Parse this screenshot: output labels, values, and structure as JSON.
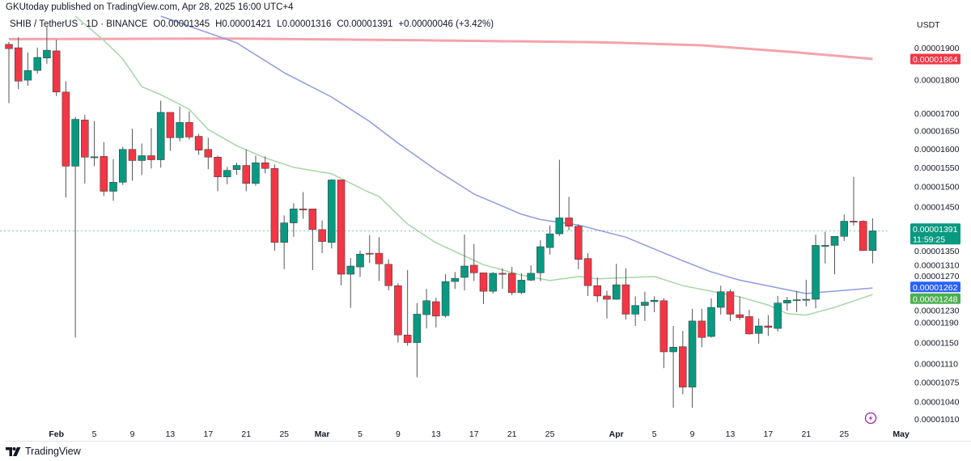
{
  "header": {
    "published": "GKUtoday published on TradingView.com, Apr 28, 2025 16:00 UTC+4",
    "symbol": "SHIB / TetherUS · 1D · BINANCE",
    "open": "O0.00001345",
    "high": "H0.00001421",
    "low": "L0.00001316",
    "close": "C0.00001391",
    "change": "+0.00000046 (+3.42%)"
  },
  "footer": {
    "brand": "TradingView"
  },
  "icons": {
    "logo": "tradingview-logo-icon",
    "lightning": "lightning-icon"
  },
  "colors": {
    "up": "#089981",
    "down": "#f23645",
    "ma_red": "#f4a3ab",
    "ma_blue": "#8f9be0",
    "ma_green": "#a8d5a9",
    "badge_red": "#f23645",
    "badge_blue": "#2962ff",
    "badge_green": "#4caf50",
    "lightning": "#9c27b0"
  },
  "chart_data": {
    "type": "candlestick",
    "title": "",
    "xlabel": "",
    "ylabel": "",
    "y_unit": "USDT",
    "y_scale": "log",
    "ylim": [
      9.85e-06,
      2.061e-05
    ],
    "grid": false,
    "x_ticks": [
      {
        "date": "2025-02-01",
        "label": "Feb",
        "bold": true
      },
      {
        "date": "2025-02-05",
        "label": "5"
      },
      {
        "date": "2025-02-09",
        "label": "9"
      },
      {
        "date": "2025-02-13",
        "label": "13"
      },
      {
        "date": "2025-02-17",
        "label": "17"
      },
      {
        "date": "2025-02-21",
        "label": "21"
      },
      {
        "date": "2025-02-25",
        "label": "25"
      },
      {
        "date": "2025-03-01",
        "label": "Mar",
        "bold": true
      },
      {
        "date": "2025-03-05",
        "label": "5"
      },
      {
        "date": "2025-03-09",
        "label": "9"
      },
      {
        "date": "2025-03-13",
        "label": "13"
      },
      {
        "date": "2025-03-17",
        "label": "17"
      },
      {
        "date": "2025-03-21",
        "label": "21"
      },
      {
        "date": "2025-03-25",
        "label": "25"
      },
      {
        "date": "2025-04-01",
        "label": "Apr",
        "bold": true
      },
      {
        "date": "2025-04-05",
        "label": "5"
      },
      {
        "date": "2025-04-09",
        "label": "9"
      },
      {
        "date": "2025-04-13",
        "label": "13"
      },
      {
        "date": "2025-04-17",
        "label": "17"
      },
      {
        "date": "2025-04-21",
        "label": "21"
      },
      {
        "date": "2025-04-25",
        "label": "25"
      },
      {
        "date": "2025-05-01",
        "label": "May",
        "bold": true
      }
    ],
    "y_ticks": [
      "0.00001900",
      "0.00001800",
      "0.00001700",
      "0.00001650",
      "0.00001600",
      "0.00001550",
      "0.00001500",
      "0.00001450",
      "0.00001350",
      "0.00001310",
      "0.00001270",
      "0.00001230",
      "0.00001190",
      "0.00001150",
      "0.00001110",
      "0.00001075",
      "0.00001040",
      "0.00001010"
    ],
    "candle_fields": [
      "date",
      "open",
      "high",
      "low",
      "close"
    ],
    "candles": [
      [
        "2025-01-27",
        1.911e-05,
        1.919e-05,
        1.729e-05,
        1.897e-05
      ],
      [
        "2025-01-28",
        1.9e-05,
        1.934e-05,
        1.771e-05,
        1.795e-05
      ],
      [
        "2025-01-29",
        1.798e-05,
        1.885e-05,
        1.781e-05,
        1.828e-05
      ],
      [
        "2025-01-30",
        1.828e-05,
        1.9e-05,
        1.818e-05,
        1.869e-05
      ],
      [
        "2025-01-31",
        1.867e-05,
        1.969e-05,
        1.849e-05,
        1.892e-05
      ],
      [
        "2025-02-01",
        1.89e-05,
        1.926e-05,
        1.75e-05,
        1.762e-05
      ],
      [
        "2025-02-02",
        1.762e-05,
        1.795e-05,
        1.472e-05,
        1.553e-05
      ],
      [
        "2025-02-03",
        1.553e-05,
        1.689e-05,
        1.16e-05,
        1.682e-05
      ],
      [
        "2025-02-04",
        1.68e-05,
        1.695e-05,
        1.508e-05,
        1.577e-05
      ],
      [
        "2025-02-05",
        1.577e-05,
        1.677e-05,
        1.553e-05,
        1.578e-05
      ],
      [
        "2025-02-06",
        1.579e-05,
        1.618e-05,
        1.476e-05,
        1.488e-05
      ],
      [
        "2025-02-07",
        1.488e-05,
        1.572e-05,
        1.464e-05,
        1.511e-05
      ],
      [
        "2025-02-08",
        1.511e-05,
        1.605e-05,
        1.504e-05,
        1.598e-05
      ],
      [
        "2025-02-09",
        1.598e-05,
        1.655e-05,
        1.515e-05,
        1.568e-05
      ],
      [
        "2025-02-10",
        1.568e-05,
        1.614e-05,
        1.53e-05,
        1.581e-05
      ],
      [
        "2025-02-11",
        1.581e-05,
        1.657e-05,
        1.547e-05,
        1.57e-05
      ],
      [
        "2025-02-12",
        1.57e-05,
        1.736e-05,
        1.549e-05,
        1.702e-05
      ],
      [
        "2025-02-13",
        1.702e-05,
        1.702e-05,
        1.594e-05,
        1.63e-05
      ],
      [
        "2025-02-14",
        1.63e-05,
        1.719e-05,
        1.62e-05,
        1.673e-05
      ],
      [
        "2025-02-15",
        1.673e-05,
        1.705e-05,
        1.625e-05,
        1.632e-05
      ],
      [
        "2025-02-16",
        1.634e-05,
        1.641e-05,
        1.583e-05,
        1.596e-05
      ],
      [
        "2025-02-17",
        1.598e-05,
        1.63e-05,
        1.545e-05,
        1.577e-05
      ],
      [
        "2025-02-18",
        1.577e-05,
        1.581e-05,
        1.488e-05,
        1.525e-05
      ],
      [
        "2025-02-19",
        1.525e-05,
        1.551e-05,
        1.506e-05,
        1.542e-05
      ],
      [
        "2025-02-20",
        1.544e-05,
        1.562e-05,
        1.53e-05,
        1.555e-05
      ],
      [
        "2025-02-21",
        1.555e-05,
        1.598e-05,
        1.488e-05,
        1.508e-05
      ],
      [
        "2025-02-22",
        1.508e-05,
        1.581e-05,
        1.502e-05,
        1.562e-05
      ],
      [
        "2025-02-23",
        1.562e-05,
        1.579e-05,
        1.534e-05,
        1.547e-05
      ],
      [
        "2025-02-24",
        1.547e-05,
        1.557e-05,
        1.345e-05,
        1.364e-05
      ],
      [
        "2025-02-25",
        1.364e-05,
        1.428e-05,
        1.303e-05,
        1.41e-05
      ],
      [
        "2025-02-26",
        1.41e-05,
        1.458e-05,
        1.377e-05,
        1.444e-05
      ],
      [
        "2025-02-27",
        1.444e-05,
        1.486e-05,
        1.42e-05,
        1.443e-05
      ],
      [
        "2025-02-28",
        1.444e-05,
        1.444e-05,
        1.301e-05,
        1.394e-05
      ],
      [
        "2025-03-01",
        1.394e-05,
        1.416e-05,
        1.339e-05,
        1.366e-05
      ],
      [
        "2025-03-02",
        1.364e-05,
        1.519e-05,
        1.35e-05,
        1.517e-05
      ],
      [
        "2025-03-03",
        1.517e-05,
        1.517e-05,
        1.268e-05,
        1.292e-05
      ],
      [
        "2025-03-04",
        1.292e-05,
        1.328e-05,
        1.22e-05,
        1.31e-05
      ],
      [
        "2025-03-05",
        1.308e-05,
        1.345e-05,
        1.286e-05,
        1.337e-05
      ],
      [
        "2025-03-06",
        1.339e-05,
        1.381e-05,
        1.317e-05,
        1.338e-05
      ],
      [
        "2025-03-07",
        1.339e-05,
        1.376e-05,
        1.277e-05,
        1.315e-05
      ],
      [
        "2025-03-08",
        1.314e-05,
        1.325e-05,
        1.257e-05,
        1.267e-05
      ],
      [
        "2025-03-09",
        1.267e-05,
        1.272e-05,
        1.15e-05,
        1.165e-05
      ],
      [
        "2025-03-10",
        1.165e-05,
        1.301e-05,
        1.144e-05,
        1.15e-05
      ],
      [
        "2025-03-11",
        1.15e-05,
        1.23e-05,
        1.084e-05,
        1.207e-05
      ],
      [
        "2025-03-12",
        1.206e-05,
        1.26e-05,
        1.178e-05,
        1.235e-05
      ],
      [
        "2025-03-13",
        1.233e-05,
        1.241e-05,
        1.18e-05,
        1.203e-05
      ],
      [
        "2025-03-14",
        1.204e-05,
        1.292e-05,
        1.2e-05,
        1.276e-05
      ],
      [
        "2025-03-15",
        1.276e-05,
        1.297e-05,
        1.26e-05,
        1.283e-05
      ],
      [
        "2025-03-16",
        1.285e-05,
        1.382e-05,
        1.257e-05,
        1.31e-05
      ],
      [
        "2025-03-17",
        1.312e-05,
        1.36e-05,
        1.277e-05,
        1.295e-05
      ],
      [
        "2025-03-18",
        1.295e-05,
        1.295e-05,
        1.228e-05,
        1.255e-05
      ],
      [
        "2025-03-19",
        1.255e-05,
        1.297e-05,
        1.25e-05,
        1.294e-05
      ],
      [
        "2025-03-20",
        1.294e-05,
        1.305e-05,
        1.26e-05,
        1.293e-05
      ],
      [
        "2025-03-21",
        1.294e-05,
        1.308e-05,
        1.247e-05,
        1.252e-05
      ],
      [
        "2025-03-22",
        1.252e-05,
        1.294e-05,
        1.249e-05,
        1.279e-05
      ],
      [
        "2025-03-23",
        1.279e-05,
        1.312e-05,
        1.277e-05,
        1.294e-05
      ],
      [
        "2025-03-24",
        1.295e-05,
        1.369e-05,
        1.277e-05,
        1.354e-05
      ],
      [
        "2025-03-25",
        1.352e-05,
        1.404e-05,
        1.336e-05,
        1.384e-05
      ],
      [
        "2025-03-26",
        1.384e-05,
        1.57e-05,
        1.379e-05,
        1.422e-05
      ],
      [
        "2025-03-27",
        1.422e-05,
        1.474e-05,
        1.392e-05,
        1.402e-05
      ],
      [
        "2025-03-28",
        1.402e-05,
        1.406e-05,
        1.303e-05,
        1.325e-05
      ],
      [
        "2025-03-29",
        1.327e-05,
        1.339e-05,
        1.245e-05,
        1.267e-05
      ],
      [
        "2025-03-30",
        1.267e-05,
        1.285e-05,
        1.232e-05,
        1.245e-05
      ],
      [
        "2025-03-31",
        1.245e-05,
        1.256e-05,
        1.198e-05,
        1.238e-05
      ],
      [
        "2025-04-01",
        1.238e-05,
        1.315e-05,
        1.237e-05,
        1.269e-05
      ],
      [
        "2025-04-02",
        1.269e-05,
        1.305e-05,
        1.196e-05,
        1.207e-05
      ],
      [
        "2025-04-03",
        1.207e-05,
        1.244e-05,
        1.183e-05,
        1.225e-05
      ],
      [
        "2025-04-04",
        1.225e-05,
        1.254e-05,
        1.193e-05,
        1.232e-05
      ],
      [
        "2025-04-05",
        1.233e-05,
        1.244e-05,
        1.211e-05,
        1.236e-05
      ],
      [
        "2025-04-06",
        1.235e-05,
        1.24e-05,
        1.101e-05,
        1.132e-05
      ],
      [
        "2025-04-07",
        1.132e-05,
        1.183e-05,
        1.029e-05,
        1.141e-05
      ],
      [
        "2025-04-08",
        1.142e-05,
        1.173e-05,
        1.053e-05,
        1.066e-05
      ],
      [
        "2025-04-09",
        1.066e-05,
        1.218e-05,
        1.029e-05,
        1.193e-05
      ],
      [
        "2025-04-10",
        1.193e-05,
        1.218e-05,
        1.141e-05,
        1.16e-05
      ],
      [
        "2025-04-11",
        1.162e-05,
        1.24e-05,
        1.16e-05,
        1.221e-05
      ],
      [
        "2025-04-12",
        1.221e-05,
        1.267e-05,
        1.206e-05,
        1.254e-05
      ],
      [
        "2025-04-13",
        1.254e-05,
        1.259e-05,
        1.193e-05,
        1.207e-05
      ],
      [
        "2025-04-14",
        1.206e-05,
        1.244e-05,
        1.195e-05,
        1.2e-05
      ],
      [
        "2025-04-15",
        1.202e-05,
        1.216e-05,
        1.166e-05,
        1.167e-05
      ],
      [
        "2025-04-16",
        1.168e-05,
        1.198e-05,
        1.148e-05,
        1.183e-05
      ],
      [
        "2025-04-17",
        1.183e-05,
        1.205e-05,
        1.163e-05,
        1.18e-05
      ],
      [
        "2025-04-18",
        1.178e-05,
        1.245e-05,
        1.172e-05,
        1.23e-05
      ],
      [
        "2025-04-19",
        1.23e-05,
        1.243e-05,
        1.214e-05,
        1.236e-05
      ],
      [
        "2025-04-20",
        1.236e-05,
        1.256e-05,
        1.211e-05,
        1.237e-05
      ],
      [
        "2025-04-21",
        1.237e-05,
        1.28e-05,
        1.223e-05,
        1.238e-05
      ],
      [
        "2025-04-22",
        1.238e-05,
        1.382e-05,
        1.219e-05,
        1.357e-05
      ],
      [
        "2025-04-23",
        1.357e-05,
        1.389e-05,
        1.316e-05,
        1.357e-05
      ],
      [
        "2025-04-24",
        1.357e-05,
        1.378e-05,
        1.292e-05,
        1.378e-05
      ],
      [
        "2025-04-25",
        1.378e-05,
        1.43e-05,
        1.367e-05,
        1.414e-05
      ],
      [
        "2025-04-26",
        1.414e-05,
        1.525e-05,
        1.404e-05,
        1.413e-05
      ],
      [
        "2025-04-27",
        1.414e-05,
        1.416e-05,
        1.345e-05,
        1.345e-05
      ],
      [
        "2025-04-28",
        1.345e-05,
        1.421e-05,
        1.316e-05,
        1.391e-05
      ]
    ],
    "moving_averages": [
      {
        "color": "#f4a3ab",
        "width": 3,
        "last_value": "0.00001864",
        "badge_color": "#f23645",
        "points": [
          [
            "2025-01-27",
            1.928e-05
          ],
          [
            "2025-02-20",
            1.93e-05
          ],
          [
            "2025-03-10",
            1.925e-05
          ],
          [
            "2025-03-30",
            1.918e-05
          ],
          [
            "2025-04-10",
            1.908e-05
          ],
          [
            "2025-04-20",
            1.885e-05
          ],
          [
            "2025-04-28",
            1.864e-05
          ]
        ]
      },
      {
        "color": "#8f9be0",
        "width": 1.5,
        "last_value": "0.00001262",
        "badge_color": "#2962ff",
        "points": [
          [
            "2025-02-12",
            2.005e-05
          ],
          [
            "2025-02-20",
            1.916e-05
          ],
          [
            "2025-02-25",
            1.821e-05
          ],
          [
            "2025-03-02",
            1.747e-05
          ],
          [
            "2025-03-06",
            1.676e-05
          ],
          [
            "2025-03-09",
            1.615e-05
          ],
          [
            "2025-03-13",
            1.543e-05
          ],
          [
            "2025-03-17",
            1.481e-05
          ],
          [
            "2025-03-22",
            1.431e-05
          ],
          [
            "2025-03-24",
            1.418e-05
          ],
          [
            "2025-03-28",
            1.405e-05
          ],
          [
            "2025-04-02",
            1.376e-05
          ],
          [
            "2025-04-08",
            1.322e-05
          ],
          [
            "2025-04-11",
            1.297e-05
          ],
          [
            "2025-04-14",
            1.279e-05
          ],
          [
            "2025-04-21",
            1.25e-05
          ],
          [
            "2025-04-22",
            1.252e-05
          ],
          [
            "2025-04-28",
            1.262e-05
          ]
        ]
      },
      {
        "color": "#a8d5a9",
        "width": 1.5,
        "last_value": "0.00001248",
        "badge_color": "#4caf50",
        "points": [
          [
            "2025-02-03",
            2.005e-05
          ],
          [
            "2025-02-06",
            1.924e-05
          ],
          [
            "2025-02-08",
            1.864e-05
          ],
          [
            "2025-02-10",
            1.778e-05
          ],
          [
            "2025-02-12",
            1.754e-05
          ],
          [
            "2025-02-15",
            1.711e-05
          ],
          [
            "2025-02-17",
            1.653e-05
          ],
          [
            "2025-02-20",
            1.608e-05
          ],
          [
            "2025-02-23",
            1.575e-05
          ],
          [
            "2025-02-26",
            1.55e-05
          ],
          [
            "2025-03-02",
            1.533e-05
          ],
          [
            "2025-03-06",
            1.485e-05
          ],
          [
            "2025-03-07",
            1.475e-05
          ],
          [
            "2025-03-10",
            1.407e-05
          ],
          [
            "2025-03-13",
            1.363e-05
          ],
          [
            "2025-03-18",
            1.313e-05
          ],
          [
            "2025-03-22",
            1.29e-05
          ],
          [
            "2025-03-25",
            1.278e-05
          ],
          [
            "2025-03-28",
            1.287e-05
          ],
          [
            "2025-03-30",
            1.282e-05
          ],
          [
            "2025-04-05",
            1.287e-05
          ],
          [
            "2025-04-08",
            1.267e-05
          ],
          [
            "2025-04-11",
            1.255e-05
          ],
          [
            "2025-04-14",
            1.243e-05
          ],
          [
            "2025-04-17",
            1.226e-05
          ],
          [
            "2025-04-19",
            1.208e-05
          ],
          [
            "2025-04-21",
            1.205e-05
          ],
          [
            "2025-04-24",
            1.221e-05
          ],
          [
            "2025-04-28",
            1.248e-05
          ]
        ]
      }
    ],
    "last_price": {
      "value": "0.00001391",
      "countdown": "11:59:25",
      "color": "#089981"
    }
  }
}
